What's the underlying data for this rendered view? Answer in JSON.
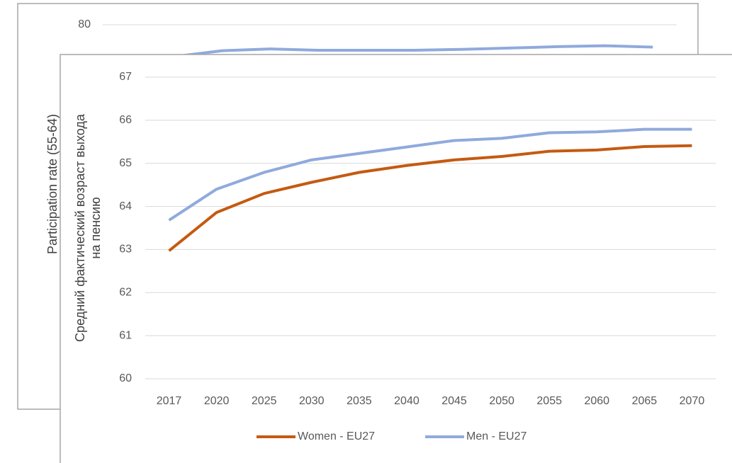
{
  "chart_data": [
    {
      "type": "line",
      "ylabel": "Participation rate (55-64)",
      "categories": [
        null,
        null,
        null,
        null,
        null,
        null,
        null,
        null,
        null,
        null,
        null,
        null
      ],
      "ylim": [
        0,
        80
      ],
      "yticks": [
        80
      ],
      "grid": true,
      "series": [
        {
          "name": null,
          "color": "#8faadc",
          "values": [
            null,
            72.9,
            74.2,
            74.6,
            74.3,
            74.3,
            74.3,
            74.5,
            74.8,
            75.1,
            75.3,
            75.0
          ]
        }
      ]
    },
    {
      "type": "line",
      "ylabel": [
        "Средний фактический возраст выхода",
        "на пенсию"
      ],
      "categories": [
        "2017",
        "2020",
        "2025",
        "2030",
        "2035",
        "2040",
        "2045",
        "2050",
        "2055",
        "2060",
        "2065",
        "2070"
      ],
      "ylim": [
        60,
        67
      ],
      "yticks": [
        60,
        61,
        62,
        63,
        64,
        65,
        66,
        67
      ],
      "grid": true,
      "legend": "bottom",
      "series": [
        {
          "name": "Women - EU27",
          "color": "#c55a11",
          "values": [
            62.97,
            63.86,
            64.3,
            64.56,
            64.79,
            64.95,
            65.08,
            65.16,
            65.28,
            65.31,
            65.39,
            65.41
          ]
        },
        {
          "name": "Men - EU27",
          "color": "#8faadc",
          "values": [
            63.68,
            64.4,
            64.79,
            65.08,
            65.23,
            65.38,
            65.53,
            65.58,
            65.71,
            65.73,
            65.79,
            65.79
          ]
        }
      ]
    }
  ]
}
